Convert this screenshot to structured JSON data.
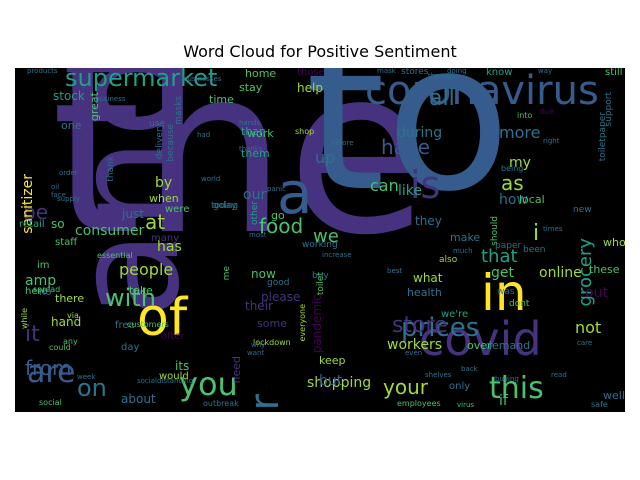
{
  "title": "Word Cloud for Positive Sentiment",
  "palette": {
    "background": "#000000",
    "dark_purple": "#46327e",
    "purple": "#440154",
    "blue": "#365c8d",
    "steel": "#2c728e",
    "teal": "#277f8e",
    "green_teal": "#1fa187",
    "green": "#4ac16d",
    "lime": "#a0da39",
    "yellow": "#fde725"
  },
  "words": [
    {
      "text": "the",
      "color": "#46327e",
      "size": 230
    },
    {
      "text": "to",
      "color": "#365c8d",
      "size": 205
    },
    {
      "text": "and",
      "color": "#46327e",
      "size": 145,
      "vertical": true
    },
    {
      "text": "a",
      "color": "#365c8d",
      "size": 58
    },
    {
      "text": "of",
      "color": "#fde725",
      "size": 52
    },
    {
      "text": "in",
      "color": "#fde725",
      "size": 50
    },
    {
      "text": "covid",
      "color": "#46327e",
      "size": 46
    },
    {
      "text": "coronavirus",
      "color": "#365c8d",
      "size": 40
    },
    {
      "text": "for",
      "color": "#2c728e",
      "size": 40,
      "vertical": true
    },
    {
      "text": "is",
      "color": "#46327e",
      "size": 38
    },
    {
      "text": "you",
      "color": "#4ac16d",
      "size": 32
    },
    {
      "text": "are",
      "color": "#365c8d",
      "size": 30
    },
    {
      "text": "this",
      "color": "#4ac16d",
      "size": 30
    },
    {
      "text": "prices",
      "color": "#2c728e",
      "size": 26
    },
    {
      "text": "supermarket",
      "color": "#1fa187",
      "size": 24
    },
    {
      "text": "on",
      "color": "#2c728e",
      "size": 24
    },
    {
      "text": "store",
      "color": "#46327e",
      "size": 22
    },
    {
      "text": "with",
      "color": "#4ac16d",
      "size": 24
    },
    {
      "text": "your",
      "color": "#a0da39",
      "size": 20
    },
    {
      "text": "all",
      "color": "#2c728e",
      "size": 22
    },
    {
      "text": "have",
      "color": "#365c8d",
      "size": 20
    },
    {
      "text": "from",
      "color": "#365c8d",
      "size": 20
    },
    {
      "text": "food",
      "color": "#4ac16d",
      "size": 20
    },
    {
      "text": "it",
      "color": "#46327e",
      "size": 22
    },
    {
      "text": "at",
      "color": "#a0da39",
      "size": 20
    },
    {
      "text": "be",
      "color": "#46327e",
      "size": 20
    },
    {
      "text": "as",
      "color": "#a0da39",
      "size": 20
    },
    {
      "text": "we",
      "color": "#4ac16d",
      "size": 18
    },
    {
      "text": "i",
      "color": "#a0da39",
      "size": 22
    },
    {
      "text": "grocery",
      "color": "#1fa187",
      "size": 18,
      "vertical": true
    },
    {
      "text": "that",
      "color": "#1fa187",
      "size": 18
    },
    {
      "text": "people",
      "color": "#a0da39",
      "size": 16
    },
    {
      "text": "more",
      "color": "#2c728e",
      "size": 16
    },
    {
      "text": "workers",
      "color": "#a0da39",
      "size": 14
    },
    {
      "text": "consumer",
      "color": "#4ac16d",
      "size": 14
    },
    {
      "text": "amp",
      "color": "#4ac16d",
      "size": 14
    },
    {
      "text": "shopping",
      "color": "#a0da39",
      "size": 14
    },
    {
      "text": "online",
      "color": "#a0da39",
      "size": 14
    },
    {
      "text": "not",
      "color": "#a0da39",
      "size": 16
    },
    {
      "text": "out",
      "color": "#440154",
      "size": 14
    },
    {
      "text": "up",
      "color": "#2c728e",
      "size": 16
    },
    {
      "text": "or",
      "color": "#46327e",
      "size": 16
    },
    {
      "text": "can",
      "color": "#4ac16d",
      "size": 16
    },
    {
      "text": "stock",
      "color": "#1fa187",
      "size": 12
    },
    {
      "text": "but",
      "color": "#365c8d",
      "size": 14
    },
    {
      "text": "during",
      "color": "#2c728e",
      "size": 14
    },
    {
      "text": "sanitizer",
      "color": "#fde725",
      "size": 14,
      "vertical": true
    },
    {
      "text": "by",
      "color": "#a0da39",
      "size": 14
    },
    {
      "text": "if",
      "color": "#4ac16d",
      "size": 14
    },
    {
      "text": "our",
      "color": "#2c728e",
      "size": 14
    },
    {
      "text": "has",
      "color": "#a0da39",
      "size": 14
    },
    {
      "text": "get",
      "color": "#4ac16d",
      "size": 14
    },
    {
      "text": "like",
      "color": "#1fa187",
      "size": 14
    },
    {
      "text": "how",
      "color": "#2c728e",
      "size": 14
    },
    {
      "text": "my",
      "color": "#a0da39",
      "size": 14
    },
    {
      "text": "what",
      "color": "#a0da39",
      "size": 12
    },
    {
      "text": "just",
      "color": "#2c728e",
      "size": 12
    },
    {
      "text": "pandemic",
      "color": "#440154",
      "size": 12,
      "vertical": true
    },
    {
      "text": "hand",
      "color": "#a0da39",
      "size": 12
    },
    {
      "text": "help",
      "color": "#a0da39",
      "size": 12
    },
    {
      "text": "they",
      "color": "#2c728e",
      "size": 12
    },
    {
      "text": "so",
      "color": "#4ac16d",
      "size": 12
    },
    {
      "text": "please",
      "color": "#46327e",
      "size": 12
    },
    {
      "text": "now",
      "color": "#4ac16d",
      "size": 12
    },
    {
      "text": "about",
      "color": "#2c728e",
      "size": 12
    },
    {
      "text": "only",
      "color": "#2c728e",
      "size": 10
    },
    {
      "text": "its",
      "color": "#4ac16d",
      "size": 12
    },
    {
      "text": "their",
      "color": "#46327e",
      "size": 12
    },
    {
      "text": "keep",
      "color": "#a0da39",
      "size": 11
    },
    {
      "text": "one",
      "color": "#2c728e",
      "size": 11
    },
    {
      "text": "when",
      "color": "#a0da39",
      "size": 11
    },
    {
      "text": "home",
      "color": "#4ac16d",
      "size": 11
    },
    {
      "text": "there",
      "color": "#a0da39",
      "size": 11
    },
    {
      "text": "make",
      "color": "#2c728e",
      "size": 11
    },
    {
      "text": "take",
      "color": "#4ac16d",
      "size": 11
    },
    {
      "text": "go",
      "color": "#4ac16d",
      "size": 11
    },
    {
      "text": "some",
      "color": "#46327e",
      "size": 11
    },
    {
      "text": "local",
      "color": "#4ac16d",
      "size": 11
    },
    {
      "text": "time",
      "color": "#4ac16d",
      "size": 11
    },
    {
      "text": "well",
      "color": "#2c728e",
      "size": 11
    },
    {
      "text": "over",
      "color": "#4ac16d",
      "size": 11
    },
    {
      "text": "demand",
      "color": "#2c728e",
      "size": 11
    },
    {
      "text": "health",
      "color": "#2c728e",
      "size": 11
    },
    {
      "text": "need",
      "color": "#46327e",
      "size": 11,
      "vertical": true
    },
    {
      "text": "these",
      "color": "#4ac16d",
      "size": 11
    },
    {
      "text": "who",
      "color": "#a0da39",
      "size": 11
    },
    {
      "text": "stay",
      "color": "#4ac16d",
      "size": 11
    },
    {
      "text": "work",
      "color": "#4ac16d",
      "size": 11
    },
    {
      "text": "great",
      "color": "#4ac16d",
      "size": 11,
      "vertical": true
    },
    {
      "text": "than",
      "color": "#1fa187",
      "size": 11
    },
    {
      "text": "them",
      "color": "#1fa187",
      "size": 11
    },
    {
      "text": "we're",
      "color": "#1fa187",
      "size": 10
    },
    {
      "text": "were",
      "color": "#4ac16d",
      "size": 10
    },
    {
      "text": "here",
      "color": "#4ac16d",
      "size": 10
    },
    {
      "text": "retail",
      "color": "#1fa187",
      "size": 10
    },
    {
      "text": "staff",
      "color": "#4ac16d",
      "size": 10
    },
    {
      "text": "many",
      "color": "#46327e",
      "size": 10
    },
    {
      "text": "free",
      "color": "#2c728e",
      "size": 10
    },
    {
      "text": "after",
      "color": "#440154",
      "size": 10
    },
    {
      "text": "day",
      "color": "#2c728e",
      "size": 10
    },
    {
      "text": "would",
      "color": "#a0da39",
      "size": 10
    },
    {
      "text": "im",
      "color": "#4ac16d",
      "size": 10
    },
    {
      "text": "no",
      "color": "#2c728e",
      "size": 10
    },
    {
      "text": "those",
      "color": "#440154",
      "size": 10
    },
    {
      "text": "know",
      "color": "#1fa187",
      "size": 10
    },
    {
      "text": "still",
      "color": "#4ac16d",
      "size": 10
    },
    {
      "text": "stores",
      "color": "#2c728e",
      "size": 9
    },
    {
      "text": "masks",
      "color": "#2c728e",
      "size": 9,
      "vertical": true
    },
    {
      "text": "because",
      "color": "#2c728e",
      "size": 9,
      "vertical": true
    },
    {
      "text": "delivery",
      "color": "#2c728e",
      "size": 9,
      "vertical": true
    },
    {
      "text": "thank",
      "color": "#2c728e",
      "size": 9,
      "vertical": true
    },
    {
      "text": "me",
      "color": "#4ac16d",
      "size": 9,
      "vertical": true
    },
    {
      "text": "today",
      "color": "#2c728e",
      "size": 9
    },
    {
      "text": "use",
      "color": "#2c728e",
      "size": 9
    },
    {
      "text": "going",
      "color": "#2c728e",
      "size": 9
    },
    {
      "text": "other",
      "color": "#1fa187",
      "size": 9,
      "vertical": true
    },
    {
      "text": "working",
      "color": "#2c728e",
      "size": 9
    },
    {
      "text": "toilet",
      "color": "#4ac16d",
      "size": 9,
      "vertical": true
    },
    {
      "text": "buy",
      "color": "#2c728e",
      "size": 9
    },
    {
      "text": "good",
      "color": "#2c728e",
      "size": 9
    },
    {
      "text": "should",
      "color": "#4ac16d",
      "size": 9,
      "vertical": true
    },
    {
      "text": "paper",
      "color": "#2c728e",
      "size": 9
    },
    {
      "text": "also",
      "color": "#a0da39",
      "size": 9
    },
    {
      "text": "been",
      "color": "#2c728e",
      "size": 9
    },
    {
      "text": "was",
      "color": "#2c728e",
      "size": 9
    },
    {
      "text": "dont",
      "color": "#4ac16d",
      "size": 9
    },
    {
      "text": "new",
      "color": "#2c728e",
      "size": 9
    },
    {
      "text": "support",
      "color": "#2c728e",
      "size": 9,
      "vertical": true
    },
    {
      "text": "toiletpaper",
      "color": "#2c728e",
      "size": 9,
      "vertical": true
    },
    {
      "text": "shop",
      "color": "#a0da39",
      "size": 8
    },
    {
      "text": "everyone",
      "color": "#a0da39",
      "size": 8,
      "vertical": true
    },
    {
      "text": "customers",
      "color": "#4ac16d",
      "size": 8
    },
    {
      "text": "essential",
      "color": "#4ac16d",
      "size": 8
    },
    {
      "text": "lockdown",
      "color": "#a0da39",
      "size": 8
    },
    {
      "text": "while",
      "color": "#a0da39",
      "size": 8,
      "vertical": true
    },
    {
      "text": "via",
      "color": "#a0da39",
      "size": 8
    },
    {
      "text": "spread",
      "color": "#4ac16d",
      "size": 8
    },
    {
      "text": "could",
      "color": "#4ac16d",
      "size": 8
    },
    {
      "text": "into",
      "color": "#4ac16d",
      "size": 8
    },
    {
      "text": "due",
      "color": "#440154",
      "size": 8
    },
    {
      "text": "any",
      "color": "#4ac16d",
      "size": 8
    },
    {
      "text": "being",
      "color": "#2c728e",
      "size": 8
    },
    {
      "text": "social",
      "color": "#4ac16d",
      "size": 8
    },
    {
      "text": "employees",
      "color": "#4ac16d",
      "size": 8
    },
    {
      "text": "safe",
      "color": "#2c728e",
      "size": 8
    },
    {
      "text": "outbreak",
      "color": "#2c728e",
      "size": 8
    },
    {
      "text": "buying",
      "color": "#2c728e",
      "size": 7
    },
    {
      "text": "virus",
      "color": "#4ac16d",
      "size": 7
    },
    {
      "text": "read",
      "color": "#2c728e",
      "size": 7
    },
    {
      "text": "shelves",
      "color": "#2c728e",
      "size": 7
    },
    {
      "text": "products",
      "color": "#2c728e",
      "size": 7
    },
    {
      "text": "business",
      "color": "#2c728e",
      "size": 7
    },
    {
      "text": "businesses",
      "color": "#2c728e",
      "size": 7
    },
    {
      "text": "through",
      "color": "#2c728e",
      "size": 7
    },
    {
      "text": "doing",
      "color": "#2c728e",
      "size": 7
    },
    {
      "text": "way",
      "color": "#2c728e",
      "size": 7
    },
    {
      "text": "mask",
      "color": "#2c728e",
      "size": 7
    },
    {
      "text": "hands",
      "color": "#2c728e",
      "size": 7
    },
    {
      "text": "thanks",
      "color": "#2c728e",
      "size": 7
    },
    {
      "text": "had",
      "color": "#2c728e",
      "size": 7
    },
    {
      "text": "order",
      "color": "#2c728e",
      "size": 7
    },
    {
      "text": "supply",
      "color": "#2c728e",
      "size": 7
    },
    {
      "text": "oil",
      "color": "#2c728e",
      "size": 7
    },
    {
      "text": "face",
      "color": "#2c728e",
      "size": 7
    },
    {
      "text": "world",
      "color": "#2c728e",
      "size": 7
    },
    {
      "text": "panic",
      "color": "#2c728e",
      "size": 7
    },
    {
      "text": "most",
      "color": "#2c728e",
      "size": 7
    },
    {
      "text": "increase",
      "color": "#2c728e",
      "size": 7
    },
    {
      "text": "best",
      "color": "#2c728e",
      "size": 7
    },
    {
      "text": "much",
      "color": "#2c728e",
      "size": 7
    },
    {
      "text": "times",
      "color": "#2c728e",
      "size": 7
    },
    {
      "text": "why",
      "color": "#2c728e",
      "size": 7
    },
    {
      "text": "want",
      "color": "#2c728e",
      "size": 7
    },
    {
      "text": "even",
      "color": "#2c728e",
      "size": 7
    },
    {
      "text": "back",
      "color": "#2c728e",
      "size": 7
    },
    {
      "text": "care",
      "color": "#2c728e",
      "size": 7
    },
    {
      "text": "week",
      "color": "#2c728e",
      "size": 7
    },
    {
      "text": "socialdistancing",
      "color": "#2c728e",
      "size": 7
    },
    {
      "text": "government",
      "color": "#2c728e",
      "size": 7
    },
    {
      "text": "right",
      "color": "#2c728e",
      "size": 7
    },
    {
      "text": "before",
      "color": "#2c728e",
      "size": 7
    }
  ]
}
